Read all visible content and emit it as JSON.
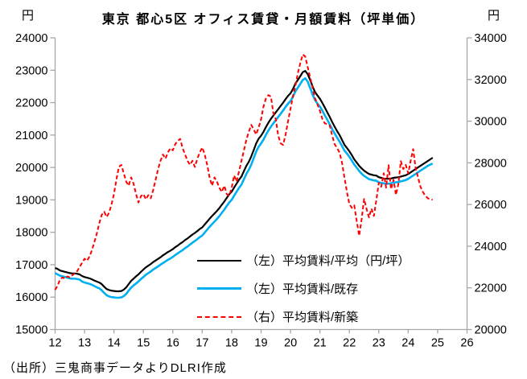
{
  "chart_data": {
    "type": "line",
    "title": "東京 都心5区 オフィス賃貸・月額賃料（坪単価）",
    "source": "（出所）三鬼商事データよりDLRI作成",
    "grid": false,
    "legend_position": "inside-lower-right",
    "axis_color": "#A6A6A6",
    "left_axis": {
      "unit": "円",
      "min": 15000,
      "max": 24000,
      "ticks": [
        15000,
        16000,
        17000,
        18000,
        19000,
        20000,
        21000,
        22000,
        23000,
        24000
      ]
    },
    "right_axis": {
      "unit": "円",
      "min": 20000,
      "max": 34000,
      "ticks": [
        20000,
        22000,
        24000,
        26000,
        28000,
        30000,
        32000,
        34000
      ]
    },
    "x_axis": {
      "ticks": [
        "12",
        "13",
        "14",
        "15",
        "16",
        "17",
        "18",
        "19",
        "20",
        "21",
        "22",
        "23",
        "24",
        "25",
        "26"
      ],
      "months_total": 168,
      "start": "2012-01",
      "end": "2024-11"
    },
    "series": [
      {
        "name": "（左）平均賃料/平均（円/坪）",
        "axis": "left",
        "color": "#000000",
        "dash": false,
        "width": 2.2,
        "values": [
          16900,
          16870,
          16820,
          16800,
          16780,
          16760,
          16740,
          16730,
          16730,
          16720,
          16700,
          16650,
          16620,
          16600,
          16580,
          16550,
          16510,
          16480,
          16450,
          16400,
          16320,
          16250,
          16220,
          16200,
          16190,
          16180,
          16180,
          16190,
          16230,
          16300,
          16400,
          16500,
          16570,
          16640,
          16700,
          16780,
          16850,
          16920,
          16970,
          17020,
          17080,
          17130,
          17180,
          17230,
          17290,
          17340,
          17390,
          17430,
          17480,
          17540,
          17590,
          17650,
          17700,
          17760,
          17810,
          17870,
          17930,
          17980,
          18040,
          18100,
          18150,
          18240,
          18330,
          18420,
          18500,
          18580,
          18660,
          18750,
          18850,
          18950,
          19060,
          19170,
          19250,
          19380,
          19500,
          19620,
          19720,
          19890,
          20050,
          20180,
          20340,
          20540,
          20740,
          20890,
          20980,
          21100,
          21250,
          21380,
          21500,
          21600,
          21700,
          21800,
          21900,
          22000,
          22110,
          22210,
          22290,
          22420,
          22590,
          22700,
          22820,
          22940,
          22980,
          22880,
          22700,
          22500,
          22330,
          22220,
          22120,
          21990,
          21850,
          21700,
          21560,
          21400,
          21260,
          21120,
          21000,
          20850,
          20700,
          20600,
          20500,
          20380,
          20250,
          20150,
          20050,
          19970,
          19900,
          19850,
          19800,
          19780,
          19760,
          19750,
          19700,
          19680,
          19660,
          19650,
          19650,
          19660,
          19680,
          19690,
          19700,
          19720,
          19740,
          19760,
          19800,
          19850,
          19900,
          19950,
          20000,
          20050,
          20100,
          20150,
          20200,
          20250,
          20300
        ]
      },
      {
        "name": "（左）平均賃料/既存",
        "axis": "left",
        "color": "#00B0F0",
        "dash": false,
        "width": 2.6,
        "values": [
          16740,
          16700,
          16660,
          16640,
          16620,
          16600,
          16580,
          16570,
          16570,
          16560,
          16540,
          16480,
          16450,
          16430,
          16410,
          16380,
          16340,
          16300,
          16270,
          16210,
          16130,
          16060,
          16020,
          16000,
          15990,
          15980,
          15980,
          15990,
          16030,
          16100,
          16200,
          16290,
          16360,
          16420,
          16480,
          16560,
          16620,
          16690,
          16740,
          16790,
          16850,
          16900,
          16950,
          17000,
          17050,
          17100,
          17150,
          17190,
          17240,
          17300,
          17350,
          17400,
          17450,
          17510,
          17560,
          17620,
          17680,
          17730,
          17790,
          17850,
          17900,
          17990,
          18080,
          18170,
          18250,
          18330,
          18410,
          18500,
          18600,
          18700,
          18810,
          18920,
          19000,
          19130,
          19250,
          19370,
          19470,
          19640,
          19800,
          19930,
          20090,
          20290,
          20490,
          20640,
          20740,
          20860,
          21010,
          21140,
          21260,
          21360,
          21460,
          21560,
          21660,
          21760,
          21870,
          21970,
          22050,
          22180,
          22350,
          22460,
          22580,
          22700,
          22750,
          22650,
          22450,
          22250,
          22080,
          21970,
          21880,
          21750,
          21610,
          21470,
          21330,
          21180,
          21050,
          20920,
          20800,
          20660,
          20520,
          20430,
          20330,
          20210,
          20090,
          19990,
          19890,
          19810,
          19740,
          19690,
          19640,
          19620,
          19600,
          19590,
          19540,
          19520,
          19510,
          19500,
          19500,
          19510,
          19530,
          19540,
          19550,
          19570,
          19590,
          19610,
          19650,
          19700,
          19750,
          19800,
          19850,
          19900,
          19950,
          20000,
          20050,
          20090,
          20120
        ]
      },
      {
        "name": "（右）平均賃料/新築",
        "axis": "right",
        "color": "#FF0000",
        "dash": true,
        "width": 2,
        "values": [
          21900,
          22100,
          22400,
          22500,
          22450,
          22550,
          22500,
          22600,
          22700,
          22800,
          23000,
          23200,
          23400,
          23300,
          23500,
          23800,
          24200,
          24600,
          25100,
          25500,
          25650,
          25400,
          25600,
          26000,
          26500,
          27200,
          27800,
          27900,
          27500,
          27100,
          26900,
          27300,
          27000,
          26500,
          26100,
          26400,
          26500,
          26250,
          26450,
          26300,
          26700,
          27200,
          27700,
          28100,
          28400,
          28200,
          28500,
          28700,
          28600,
          28900,
          29050,
          29150,
          28700,
          28400,
          28100,
          27900,
          28100,
          27800,
          28200,
          28500,
          28740,
          28400,
          27900,
          27300,
          26900,
          27300,
          27100,
          26800,
          26600,
          26900,
          26500,
          26420,
          26800,
          27400,
          27100,
          27600,
          28100,
          28600,
          29100,
          29500,
          29820,
          29600,
          29360,
          29700,
          30100,
          30700,
          31100,
          31250,
          31180,
          30400,
          30090,
          29300,
          28930,
          28860,
          29360,
          30000,
          30600,
          31200,
          31700,
          32300,
          32800,
          33200,
          33100,
          32600,
          32100,
          31600,
          31100,
          30800,
          30500,
          30100,
          29900,
          29850,
          29800,
          29300,
          28900,
          28700,
          28500,
          28000,
          27300,
          26600,
          26030,
          25840,
          25960,
          25200,
          24500,
          25300,
          26270,
          25800,
          25380,
          25800,
          25450,
          26200,
          27040,
          26850,
          27500,
          26810,
          27890,
          26730,
          27190,
          26460,
          27000,
          28080,
          27700,
          27900,
          27500,
          28100,
          28660,
          27770,
          27310,
          26850,
          26600,
          26420,
          26300,
          26250,
          26230
        ]
      }
    ]
  }
}
